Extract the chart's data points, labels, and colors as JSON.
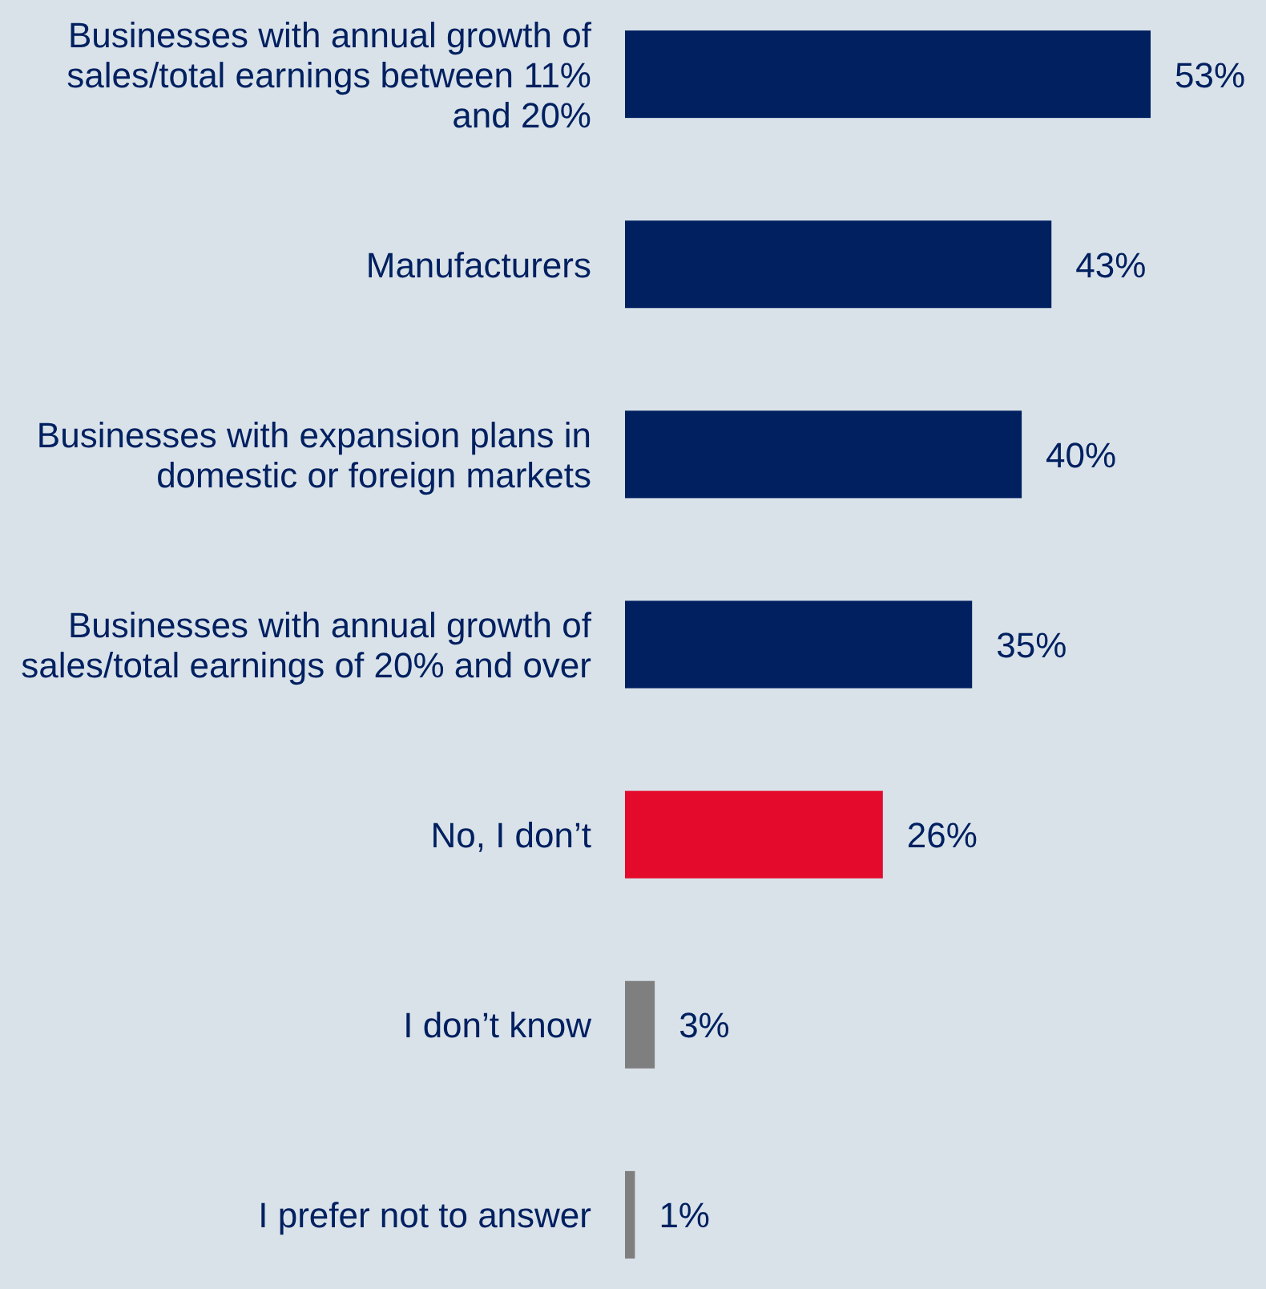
{
  "chart_data": {
    "type": "bar",
    "orientation": "horizontal",
    "categories": [
      "Businesses with annual growth of sales/total earnings between 11% and 20%",
      "Manufacturers",
      "Businesses with expansion plans in domestic or foreign markets",
      "Businesses with annual growth of sales/total earnings of 20% and over",
      "No, I don’t",
      "I don’t know",
      "I prefer not to answer"
    ],
    "values": [
      53,
      43,
      40,
      35,
      26,
      3,
      1
    ],
    "value_labels": [
      "53%",
      "43%",
      "40%",
      "35%",
      "26%",
      "3%",
      "1%"
    ],
    "colors": [
      "#002060",
      "#002060",
      "#002060",
      "#002060",
      "#e30a2c",
      "#7f7f7f",
      "#7f7f7f"
    ]
  }
}
